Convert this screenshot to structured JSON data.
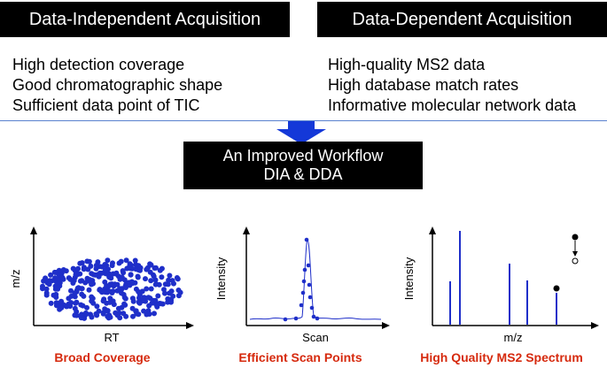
{
  "header_left": "Data-Independent Acquisition",
  "header_right": "Data-Dependent Acquisition",
  "dia_points": [
    "High detection coverage",
    "Good chromatographic shape",
    "Sufficient data point of TIC"
  ],
  "dda_points": [
    "High-quality MS2 data",
    "High database match rates",
    "Informative molecular network data"
  ],
  "workflow": {
    "line1": "An Improved Workflow",
    "line2": "DIA & DDA"
  },
  "panels": [
    {
      "xlabel": "RT",
      "ylabel": "m/z",
      "caption": "Broad Coverage"
    },
    {
      "xlabel": "Scan",
      "ylabel": "Intensity",
      "caption": "Efficient Scan Points"
    },
    {
      "xlabel": "m/z",
      "ylabel": "Intensity",
      "caption": "High Quality MS2 Spectrum"
    }
  ],
  "colors": {
    "accent": "#1f2fc9",
    "caption": "#d62a0e",
    "arrow": "#1438d8",
    "divider": "#5a82cf"
  }
}
